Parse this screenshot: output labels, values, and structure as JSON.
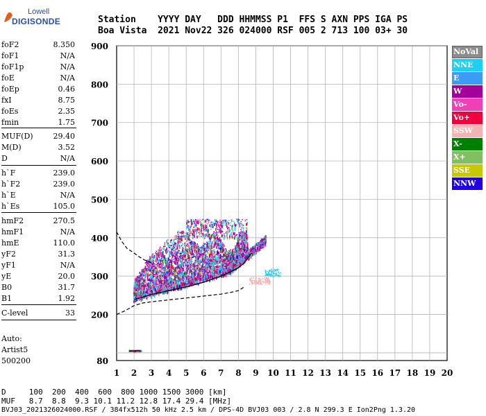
{
  "logo": {
    "line1": "Lowell",
    "line2": "DIGISONDE"
  },
  "header": {
    "row1": "Station    YYYY DAY   DDD HHMMSS P1  FFS S AXN PPS IGA PS",
    "row2": "Boa Vista  2021 Nov22 326 024000 RSF 005 2 713 100 03+ 30"
  },
  "params": [
    {
      "label": "foF2",
      "value": "8.350"
    },
    {
      "label": "foF1",
      "value": "N/A"
    },
    {
      "label": "foF1p",
      "value": "N/A"
    },
    {
      "label": "foE",
      "value": "N/A"
    },
    {
      "label": "foEp",
      "value": "0.46"
    },
    {
      "label": "fxI",
      "value": "8.75"
    },
    {
      "label": "foEs",
      "value": "2.35"
    },
    {
      "label": "fmin",
      "value": "1.75"
    },
    {
      "label": "MUF(D)",
      "value": "29.40"
    },
    {
      "label": "M(D)",
      "value": "3.52"
    },
    {
      "label": "D",
      "value": "N/A"
    },
    {
      "label": "h`F",
      "value": "239.0"
    },
    {
      "label": "h`F2",
      "value": "239.0"
    },
    {
      "label": "h`E",
      "value": "N/A"
    },
    {
      "label": "h`Es",
      "value": "105.0"
    },
    {
      "label": "hmF2",
      "value": "270.5"
    },
    {
      "label": "hmF1",
      "value": "N/A"
    },
    {
      "label": "hmE",
      "value": "110.0"
    },
    {
      "label": "yF2",
      "value": "31.3"
    },
    {
      "label": "yF1",
      "value": "N/A"
    },
    {
      "label": "yE",
      "value": "20.0"
    },
    {
      "label": "B0",
      "value": "31.7"
    },
    {
      "label": "B1",
      "value": "1.92"
    },
    {
      "label": "C-level",
      "value": "33"
    }
  ],
  "auto": {
    "line1": "Auto:",
    "line2": "Artist5",
    "line3": "500200"
  },
  "footer": {
    "d_row": "D     100  200  400  600  800 1000 1500 3000 [km]",
    "muf_row": "MUF   8.7  8.8  9.3 10.1 11.2 12.8 17.4 29.4 [MHz]",
    "info": "BVJ03_2021326024000.RSF / 384fx512h 50 kHz 2.5 km / DPS-4D BVJ03 003 / 2.8 N 299.3 E Ion2Png 1.3.20"
  },
  "legend": [
    {
      "label": "NoVal",
      "color": "#8c8c8c"
    },
    {
      "label": "NNE",
      "color": "#1ecff5"
    },
    {
      "label": "E",
      "color": "#3c9cf5"
    },
    {
      "label": "W",
      "color": "#a4009c"
    },
    {
      "label": "Vo-",
      "color": "#f040b8"
    },
    {
      "label": "Vo+",
      "color": "#f0003c"
    },
    {
      "label": "SSW",
      "color": "#f4b4b4"
    },
    {
      "label": "X-",
      "color": "#008000"
    },
    {
      "label": "X+",
      "color": "#80c060"
    },
    {
      "label": "SSE",
      "color": "#c8c800"
    },
    {
      "label": "NNW",
      "color": "#2000e0"
    }
  ],
  "chart_data": {
    "type": "scatter",
    "xlim": [
      1,
      20
    ],
    "ylim": [
      80,
      900
    ],
    "x_ticks": [
      1,
      2,
      3,
      4,
      5,
      6,
      7,
      8,
      9,
      10,
      11,
      12,
      13,
      14,
      15,
      16,
      17,
      18,
      19,
      20
    ],
    "y_ticks": [
      100,
      200,
      300,
      400,
      500,
      600,
      700,
      800,
      900
    ],
    "y_tick_labels": [
      "",
      "200",
      "300",
      "400",
      "500",
      "600",
      "700",
      "800",
      "900"
    ],
    "y_corner_label": "80",
    "grid": true,
    "legend_position": "right",
    "es_trace": {
      "x": [
        1.75,
        2.0,
        2.2,
        2.35
      ],
      "y": [
        105,
        105,
        106,
        105
      ]
    },
    "f_trace": {
      "x": [
        2.0,
        2.5,
        3.0,
        4.0,
        5.0,
        6.0,
        7.0,
        7.5,
        8.0,
        8.35,
        8.75
      ],
      "y": [
        239,
        245,
        252,
        262,
        272,
        284,
        300,
        310,
        322,
        335,
        360
      ]
    },
    "profile_top": {
      "x": [
        1.0,
        1.3,
        1.6,
        2.0,
        2.3,
        2.6,
        3.0
      ],
      "y": [
        415,
        390,
        372,
        360,
        350,
        342,
        335
      ]
    },
    "profile_bottom": {
      "x": [
        1.0,
        1.5,
        2.0,
        2.5,
        3.0,
        4.0,
        5.0,
        6.0,
        7.0,
        7.5,
        8.0,
        8.35
      ],
      "y": [
        200,
        210,
        223,
        230,
        233,
        238,
        243,
        248,
        253,
        257,
        262,
        272
      ]
    }
  }
}
